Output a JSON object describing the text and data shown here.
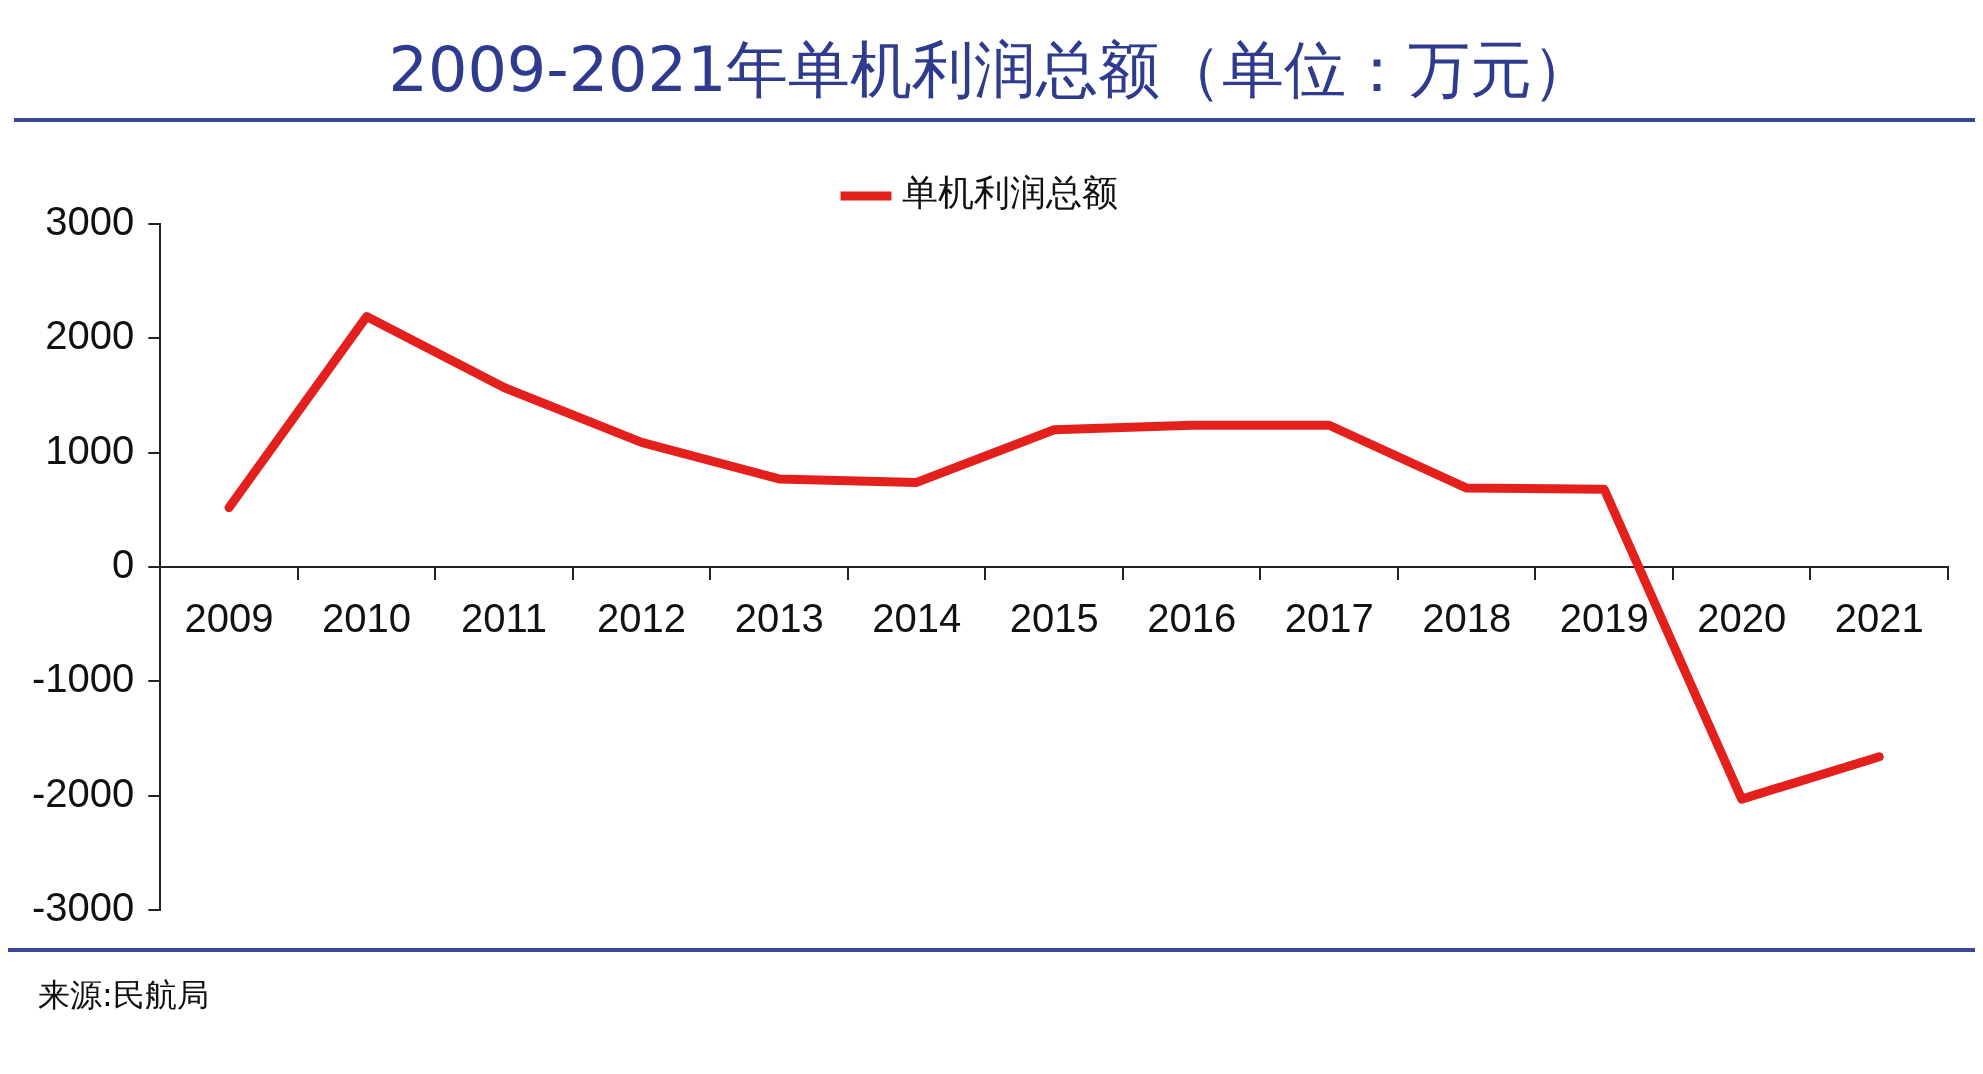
{
  "chart_data": {
    "type": "line",
    "title": "2009-2021年单机利润总额（单位：万元）",
    "categories": [
      "2009",
      "2010",
      "2011",
      "2012",
      "2013",
      "2014",
      "2015",
      "2016",
      "2017",
      "2018",
      "2019",
      "2020",
      "2021"
    ],
    "series": [
      {
        "name": "单机利润总额",
        "color": "#e3201b",
        "values": [
          520,
          2190,
          1570,
          1090,
          770,
          740,
          1200,
          1240,
          1240,
          690,
          680,
          -2030,
          -1660
        ]
      }
    ],
    "ylim": [
      -3000,
      3000
    ],
    "yticks": [
      -3000,
      -2000,
      -1000,
      0,
      1000,
      2000,
      3000
    ],
    "grid": false,
    "legend": "top",
    "marker": "none",
    "line_style": "solid",
    "annotations": [
      "来源:民航局"
    ]
  }
}
